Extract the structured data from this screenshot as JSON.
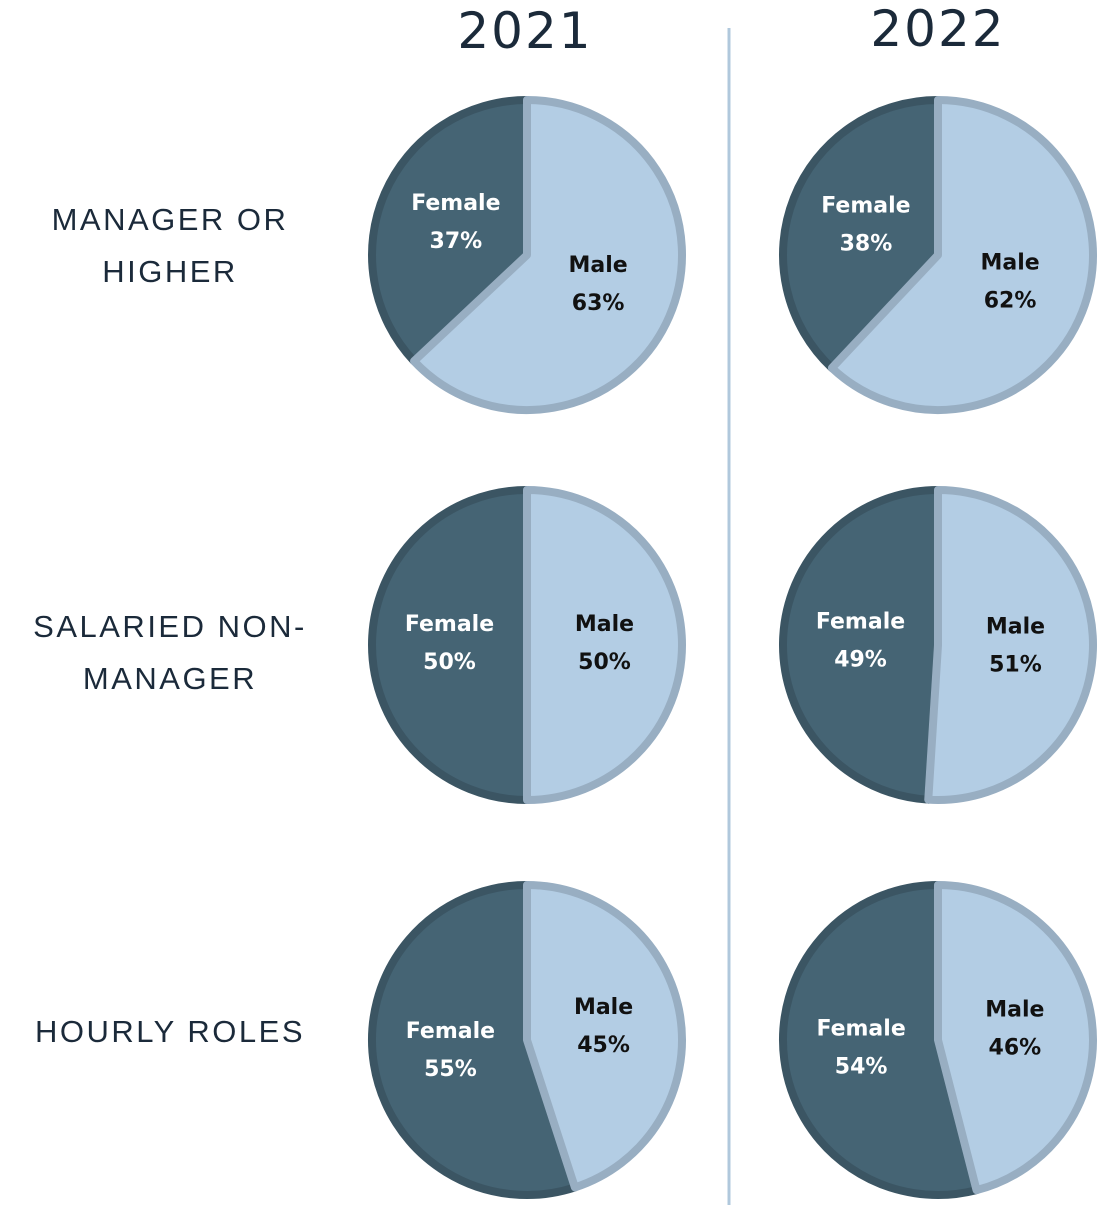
{
  "column_titles": [
    "2021",
    "2022"
  ],
  "row_labels": [
    "MANAGER OR HIGHER",
    "SALARIED NON-MANAGER",
    "HOURLY ROLES"
  ],
  "chart_data": [
    {
      "type": "pie",
      "categories": [
        "Female",
        "Male"
      ],
      "values": [
        37,
        63
      ],
      "value_labels": [
        "37%",
        "63%"
      ],
      "colors": [
        "#456474",
        "#b3cde4"
      ]
    },
    {
      "type": "pie",
      "categories": [
        "Female",
        "Male"
      ],
      "values": [
        38,
        62
      ],
      "value_labels": [
        "38%",
        "62%"
      ],
      "colors": [
        "#456474",
        "#b3cde4"
      ]
    },
    {
      "type": "pie",
      "categories": [
        "Female",
        "Male"
      ],
      "values": [
        50,
        50
      ],
      "value_labels": [
        "50%",
        "50%"
      ],
      "colors": [
        "#456474",
        "#b3cde4"
      ]
    },
    {
      "type": "pie",
      "categories": [
        "Female",
        "Male"
      ],
      "values": [
        49,
        51
      ],
      "value_labels": [
        "49%",
        "51%"
      ],
      "colors": [
        "#456474",
        "#b3cde4"
      ]
    },
    {
      "type": "pie",
      "categories": [
        "Female",
        "Male"
      ],
      "values": [
        55,
        45
      ],
      "value_labels": [
        "55%",
        "45%"
      ],
      "colors": [
        "#456474",
        "#b3cde4"
      ]
    },
    {
      "type": "pie",
      "categories": [
        "Female",
        "Male"
      ],
      "values": [
        54,
        46
      ],
      "value_labels": [
        "54%",
        "46%"
      ],
      "colors": [
        "#456474",
        "#b3cde4"
      ]
    }
  ]
}
